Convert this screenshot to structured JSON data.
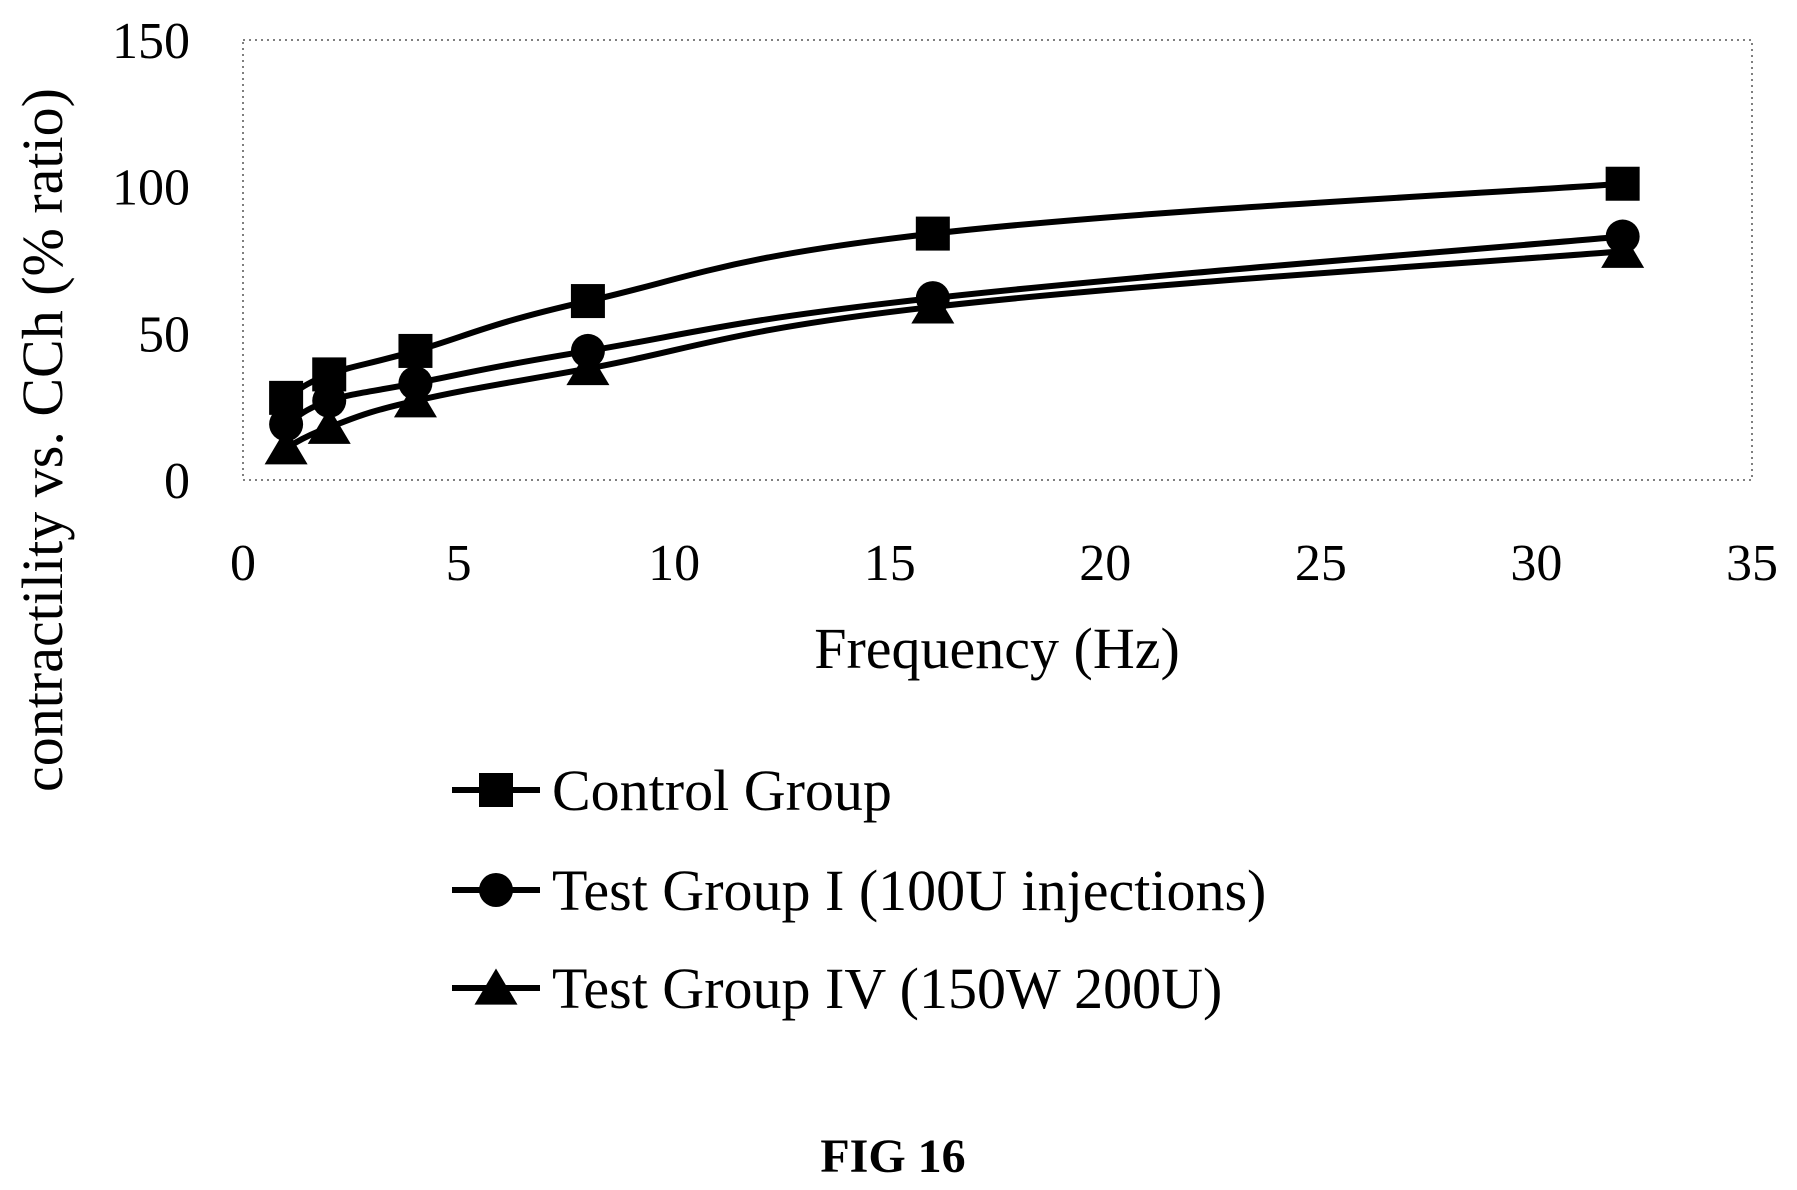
{
  "chart_data": {
    "type": "line",
    "xlabel": "Frequency (Hz)",
    "ylabel": "contractility vs. CCh (% ratio)",
    "xlim": [
      0,
      35
    ],
    "ylim": [
      0,
      150
    ],
    "xticks": [
      "0",
      "5",
      "10",
      "15",
      "20",
      "25",
      "30",
      "35"
    ],
    "yticks": [
      "0",
      "50",
      "100",
      "150"
    ],
    "grid": false,
    "legend_position": "bottom",
    "x": [
      1,
      2,
      4,
      8,
      16,
      32
    ],
    "series": [
      {
        "name": "Control Group",
        "marker": "square",
        "values": [
          28,
          36,
          44,
          61,
          84,
          101
        ]
      },
      {
        "name": "Test Group I (100U injections)",
        "marker": "circle",
        "values": [
          19,
          27,
          33,
          44,
          62,
          83
        ]
      },
      {
        "name": "Test Group IV (150W 200U)",
        "marker": "triangle",
        "values": [
          11,
          18,
          27,
          38,
          59,
          78
        ]
      }
    ],
    "color": "#000000"
  },
  "caption": "FIG 16"
}
